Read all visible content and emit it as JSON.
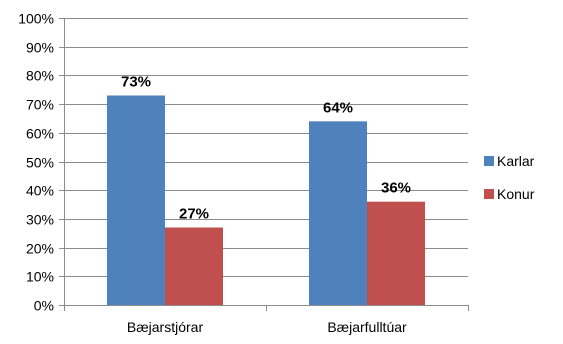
{
  "chart_data": {
    "type": "bar",
    "categories": [
      "Bæjarstjórar",
      "Bæjarfulltúar"
    ],
    "series": [
      {
        "name": "Karlar",
        "values": [
          73,
          64
        ],
        "labels": [
          "73%",
          "64%"
        ],
        "color": "#4F81BD"
      },
      {
        "name": "Konur",
        "values": [
          27,
          36
        ],
        "labels": [
          "27%",
          "36%"
        ],
        "color": "#C0504D"
      }
    ],
    "ylim": [
      0,
      100
    ],
    "yticks": [
      0,
      10,
      20,
      30,
      40,
      50,
      60,
      70,
      80,
      90,
      100
    ],
    "ytick_labels": [
      "0%",
      "10%",
      "20%",
      "30%",
      "40%",
      "50%",
      "60%",
      "70%",
      "80%",
      "90%",
      "100%"
    ],
    "grid": true,
    "legend": "right",
    "title": "",
    "xlabel": "",
    "ylabel": ""
  }
}
